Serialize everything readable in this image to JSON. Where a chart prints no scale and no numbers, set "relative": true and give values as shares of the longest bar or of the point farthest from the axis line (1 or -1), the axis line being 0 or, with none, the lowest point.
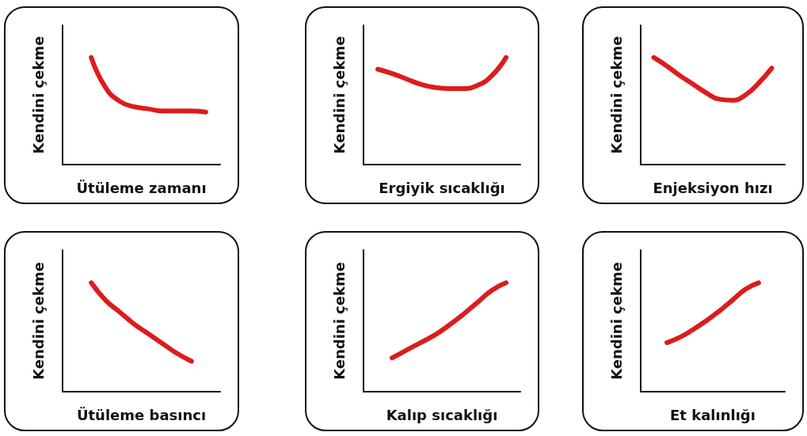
{
  "chart_data": [
    {
      "type": "line",
      "xlabel": "Ütüleme zamanı",
      "ylabel": "Kendini çekme",
      "relative": true,
      "color": "#dd1c1c",
      "categories": [
        null,
        null,
        null,
        null,
        null,
        null,
        null,
        null,
        null,
        null,
        null,
        null
      ],
      "values": [
        null,
        null,
        1.0,
        0.72,
        0.59,
        0.54,
        0.52,
        0.5,
        0.5,
        0.5,
        0.49,
        null
      ]
    },
    {
      "type": "line",
      "xlabel": "Ergiyik sıcaklığı",
      "ylabel": "Kendini çekme",
      "relative": true,
      "color": "#dd1c1c",
      "categories": [
        null,
        null,
        null,
        null,
        null,
        null,
        null,
        null,
        null,
        null,
        null,
        null
      ],
      "values": [
        null,
        0.89,
        0.85,
        0.8,
        0.75,
        0.72,
        0.71,
        0.71,
        0.74,
        0.83,
        1.0,
        null
      ]
    },
    {
      "type": "line",
      "xlabel": "Enjeksiyon hızı",
      "ylabel": "Kendini çekme",
      "relative": true,
      "color": "#dd1c1c",
      "categories": [
        null,
        null,
        null,
        null,
        null,
        null,
        null,
        null,
        null,
        null,
        null,
        null
      ],
      "values": [
        null,
        1.0,
        0.92,
        0.83,
        0.75,
        0.67,
        0.61,
        0.6,
        0.65,
        0.76,
        0.9,
        null
      ]
    },
    {
      "type": "line",
      "xlabel": "Ütüleme basıncı",
      "ylabel": "Kendini çekme",
      "relative": true,
      "color": "#dd1c1c",
      "categories": [
        null,
        null,
        null,
        null,
        null,
        null,
        null,
        null,
        null,
        null,
        null,
        null
      ],
      "values": [
        null,
        null,
        1.0,
        0.84,
        0.73,
        0.62,
        0.53,
        0.44,
        0.35,
        0.28,
        null,
        null
      ]
    },
    {
      "type": "line",
      "xlabel": "Kalıp sıcaklığı",
      "ylabel": "Kendini çekme",
      "relative": true,
      "color": "#dd1c1c",
      "categories": [
        null,
        null,
        null,
        null,
        null,
        null,
        null,
        null,
        null,
        null,
        null,
        null
      ],
      "values": [
        null,
        null,
        0.31,
        0.38,
        0.45,
        0.52,
        0.61,
        0.71,
        0.82,
        0.93,
        1.0,
        null
      ]
    },
    {
      "type": "line",
      "xlabel": "Et kalınlığı",
      "ylabel": "Kendini çekme",
      "relative": true,
      "color": "#dd1c1c",
      "categories": [
        null,
        null,
        null,
        null,
        null,
        null,
        null,
        null,
        null,
        null,
        null,
        null
      ],
      "values": [
        null,
        null,
        0.45,
        0.5,
        0.57,
        0.65,
        0.74,
        0.84,
        0.94,
        1.0,
        null,
        null
      ]
    }
  ]
}
